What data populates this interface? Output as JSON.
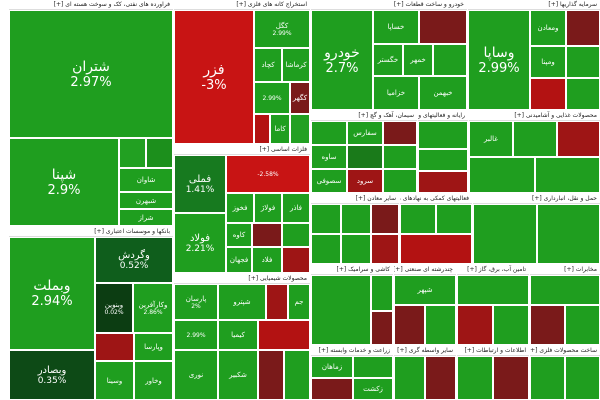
{
  "sectors": [
    {
      "key": "s_fara",
      "title": "فراورده های نفتی، کک و سوخت هسته ای [+]",
      "tiles": [
        {
          "name": "شتران",
          "pct": "2.97%",
          "color": "#1f9e1f"
        },
        {
          "name": "شپنا",
          "pct": "2.9%",
          "color": "#1f9e1f"
        },
        {
          "name": "",
          "pct": "",
          "color": "#22a022"
        },
        {
          "name": "",
          "pct": "",
          "color": "#1c8f1c"
        },
        {
          "name": "شاوان",
          "pct": "",
          "color": "#1f9e1f"
        },
        {
          "name": "شبهرن",
          "pct": "",
          "color": "#1f9e1f"
        },
        {
          "name": "",
          "pct": "",
          "color": "#1a7a1a"
        },
        {
          "name": "شراز",
          "pct": "",
          "color": "#1f9e1f"
        }
      ]
    },
    {
      "key": "s_bank",
      "title": "بانکها و موسسات اعتباری [+]",
      "tiles": [
        {
          "name": "وبملت",
          "pct": "2.94%",
          "color": "#1f9e1f"
        },
        {
          "name": "وپارسا",
          "pct": "",
          "color": "#1f9e1f"
        },
        {
          "name": "وگردش",
          "pct": "0.52%",
          "color": "#0f5e1c"
        },
        {
          "name": "وبنوین",
          "pct": "0.02%",
          "color": "#0c3d12"
        },
        {
          "name": "وکارآفرین",
          "pct": "2.86%",
          "color": "#1f9e1f"
        },
        {
          "name": "وبصادر",
          "pct": "0.35%",
          "color": "#0d4a16"
        },
        {
          "name": "",
          "pct": "",
          "color": "#9e1515"
        },
        {
          "name": "وخاور",
          "pct": "",
          "color": "#1f9e1f"
        },
        {
          "name": "وسینا",
          "pct": "",
          "color": "#1f9e1f"
        }
      ]
    },
    {
      "key": "s_kani",
      "title": "استخراج کانه های فلزی [+]",
      "tiles": [
        {
          "name": "فزر",
          "pct": "-3%",
          "color": "#c81414"
        },
        {
          "name": "کگل",
          "pct": "2.99%",
          "color": "#1f9e1f"
        },
        {
          "name": "کچاد",
          "pct": "2.99%",
          "color": "#1f9e1f"
        },
        {
          "name": "کرماشا",
          "pct": "",
          "color": "#1f9e1f"
        },
        {
          "name": "",
          "pct": "",
          "color": "#1f9e1f"
        },
        {
          "name": "کنور",
          "pct": "",
          "color": "#b31212"
        },
        {
          "name": "کگهر",
          "pct": "",
          "color": "#7a1a1a"
        },
        {
          "name": "",
          "pct": "",
          "color": "#22a022"
        },
        {
          "name": "کاما",
          "pct": "",
          "color": "#1f9e1f"
        },
        {
          "name": "",
          "pct": "",
          "color": "#1f9e1f"
        }
      ]
    },
    {
      "key": "s_felez",
      "title": "فلزات اساسی [+]",
      "tiles": [
        {
          "name": "فملی",
          "pct": "1.41%",
          "color": "#177a1f"
        },
        {
          "name": "فولاد",
          "pct": "2.21%",
          "color": "#1f9e1f"
        },
        {
          "name": "",
          "pct": "-2.58%",
          "color": "#c81414"
        },
        {
          "name": "فخوز",
          "pct": "",
          "color": "#1f9e1f"
        },
        {
          "name": "فولاژ",
          "pct": "",
          "color": "#1f9e1f"
        },
        {
          "name": "فاذر",
          "pct": "",
          "color": "#1f9e1f"
        },
        {
          "name": "کاوه",
          "pct": "",
          "color": "#1f9e1f"
        },
        {
          "name": "فجهان",
          "pct": "",
          "color": "#1f9e1f"
        },
        {
          "name": "فلاد",
          "pct": "",
          "color": "#1f9e1f"
        },
        {
          "name": "",
          "pct": "",
          "color": "#7a1a1a"
        },
        {
          "name": "",
          "pct": "",
          "color": "#1f9e1f"
        },
        {
          "name": "",
          "pct": "",
          "color": "#9e1515"
        }
      ]
    },
    {
      "key": "s_shimi",
      "title": "محصولات شیمیایی [+]",
      "tiles": [
        {
          "name": "پارسان",
          "pct": "2%",
          "color": "#1f9e1f"
        },
        {
          "name": "",
          "pct": "",
          "color": "#1f9e1f"
        },
        {
          "name": "",
          "pct": "",
          "color": "#9e1515"
        },
        {
          "name": "شپترو",
          "pct": "",
          "color": "#1f9e1f"
        },
        {
          "name": "",
          "pct": "2.99%",
          "color": "#1f9e1f"
        },
        {
          "name": "کیمیا",
          "pct": "",
          "color": "#1f9e1f"
        },
        {
          "name": "",
          "pct": "",
          "color": "#b31212"
        },
        {
          "name": "نوری",
          "pct": "",
          "color": "#1f9e1f"
        },
        {
          "name": "شکبیر",
          "pct": "",
          "color": "#1f9e1f"
        },
        {
          "name": "",
          "pct": "",
          "color": "#7a1a1a"
        },
        {
          "name": "",
          "pct": "",
          "color": "#1f9e1f"
        },
        {
          "name": "جم",
          "pct": "",
          "color": "#1f9e1f"
        }
      ]
    },
    {
      "key": "s_khodro",
      "title": "خودرو و ساخت قطعات [+]",
      "tiles": [
        {
          "name": "خودرو",
          "pct": "2.7%",
          "color": "#1f9e1f"
        },
        {
          "name": "خساپا",
          "pct": "",
          "color": "#1f9e1f"
        },
        {
          "name": "",
          "pct": "",
          "color": "#7a1a1a"
        },
        {
          "name": "خگستر",
          "pct": "",
          "color": "#1f9e1f"
        },
        {
          "name": "خمهر",
          "pct": "",
          "color": "#1f9e1f"
        },
        {
          "name": "",
          "pct": "",
          "color": "#1f9e1f"
        },
        {
          "name": "خزامیا",
          "pct": "",
          "color": "#1f9e1f"
        },
        {
          "name": "خبهمن",
          "pct": "",
          "color": "#1f9e1f"
        }
      ]
    },
    {
      "key": "s_sarmaye",
      "title": "سرمایه گذاریها [+]",
      "tiles": [
        {
          "name": "وساپا",
          "pct": "2.99%",
          "color": "#1f9e1f"
        },
        {
          "name": "ومعادن",
          "pct": "",
          "color": "#1f9e1f"
        },
        {
          "name": "",
          "pct": "",
          "color": "#7a1a1a"
        },
        {
          "name": "ومپنا",
          "pct": "",
          "color": "#1f9e1f"
        },
        {
          "name": "",
          "pct": "",
          "color": "#1f9e1f"
        },
        {
          "name": "",
          "pct": "",
          "color": "#b31212"
        },
        {
          "name": "",
          "pct": "",
          "color": "#1f9e1f"
        }
      ]
    },
    {
      "key": "s_siman",
      "title": "سیمان، آهک و گچ [+]",
      "tiles": [
        {
          "name": "سفارس",
          "pct": "",
          "color": "#1f9e1f"
        },
        {
          "name": "",
          "pct": "",
          "color": "#7a1a1a"
        },
        {
          "name": "ساوه",
          "pct": "",
          "color": "#1f9e1f"
        },
        {
          "name": "سصوفی",
          "pct": "",
          "color": "#1f9e1f"
        },
        {
          "name": "سرود",
          "pct": "",
          "color": "#9e1515"
        },
        {
          "name": "",
          "pct": "",
          "color": "#1f9e1f"
        },
        {
          "name": "",
          "pct": "",
          "color": "#1f9e1f"
        },
        {
          "name": "",
          "pct": "",
          "color": "#1a7a1a"
        }
      ]
    },
    {
      "key": "s_raiane",
      "title": "رایانه و فعالیتهای وابسته [+]",
      "tiles": [
        {
          "name": "",
          "pct": "",
          "color": "#1f9e1f"
        },
        {
          "name": "",
          "pct": "",
          "color": "#1f9e1f"
        },
        {
          "name": "",
          "pct": "",
          "color": "#9e1515"
        }
      ]
    },
    {
      "key": "s_hotel",
      "title": "هتل و رستوران [+]",
      "tiles": [
        {
          "name": "",
          "pct": "",
          "color": "#1f9e1f"
        },
        {
          "name": "",
          "pct": "",
          "color": "#1f9e1f"
        }
      ]
    },
    {
      "key": "s_chand",
      "title": "چندرشته ای صنعتی [+]",
      "tiles": [
        {
          "name": "شپهر",
          "pct": "",
          "color": "#1f9e1f"
        },
        {
          "name": "",
          "pct": "",
          "color": "#7a1a1a"
        },
        {
          "name": "",
          "pct": "",
          "color": "#1f9e1f"
        }
      ]
    },
    {
      "key": "s_tele",
      "title": "مخابرات [+]",
      "tiles": [
        {
          "name": "",
          "pct": "",
          "color": "#1f9e1f"
        },
        {
          "name": "",
          "pct": "",
          "color": "#7a1a1a"
        },
        {
          "name": "",
          "pct": "",
          "color": "#1f9e1f"
        }
      ]
    },
    {
      "key": "s_taamin",
      "title": "تامین آب، برق، گاز [+]",
      "tiles": [
        {
          "name": "",
          "pct": "",
          "color": "#1f9e1f"
        },
        {
          "name": "",
          "pct": "",
          "color": "#9e1515"
        },
        {
          "name": "",
          "pct": "",
          "color": "#1f9e1f"
        }
      ]
    },
    {
      "key": "s_zeraat",
      "title": "زراعت و خدمات وابسته [+]",
      "tiles": [
        {
          "name": "زماهان",
          "pct": "",
          "color": "#1f9e1f"
        },
        {
          "name": "",
          "pct": "",
          "color": "#1f9e1f"
        },
        {
          "name": "",
          "pct": "",
          "color": "#7a1a1a"
        },
        {
          "name": "زکشت",
          "pct": "",
          "color": "#1f9e1f"
        }
      ]
    },
    {
      "key": "s_daroo",
      "title": "مواد و محصولات دارویی [+]",
      "tiles": [
        {
          "name": "",
          "pct": "",
          "color": "#1f9e1f"
        },
        {
          "name": "",
          "pct": "",
          "color": "#1f9e1f"
        },
        {
          "name": "تیپکو",
          "pct": "",
          "color": "#1f9e1f"
        },
        {
          "name": "",
          "pct": "",
          "color": "#7a1a1a"
        },
        {
          "name": "",
          "pct": "",
          "color": "#1f9e1f"
        },
        {
          "name": "",
          "pct": "",
          "color": "#1f9e1f"
        },
        {
          "name": "",
          "pct": "",
          "color": "#1f9e1f"
        },
        {
          "name": "",
          "pct": "",
          "color": "#9e1515"
        }
      ]
    },
    {
      "key": "s_madan",
      "title": "سایر معادن [+]",
      "tiles": [
        {
          "name": "وبعدیر",
          "pct": "2.96%",
          "color": "#1f9e1f"
        },
        {
          "name": "",
          "pct": "",
          "color": "#1f9e1f"
        },
        {
          "name": "",
          "pct": "",
          "color": "#7a1a1a"
        },
        {
          "name": "",
          "pct": "",
          "color": "#1f9e1f"
        }
      ]
    },
    {
      "key": "s_kashi",
      "title": "کاشی و سرامیک [+]",
      "tiles": [
        {
          "name": "",
          "pct": "",
          "color": "#1f9e1f"
        },
        {
          "name": "",
          "pct": "",
          "color": "#1f9e1f"
        }
      ]
    },
    {
      "key": "s_poul",
      "title": "فعالیتهای کمکی به نهادهای مالی [+]",
      "tiles": [
        {
          "name": "",
          "pct": "",
          "color": "#1f9e1f"
        },
        {
          "name": "",
          "pct": "",
          "color": "#1f9e1f"
        },
        {
          "name": "",
          "pct": "",
          "color": "#b31212"
        }
      ]
    },
    {
      "key": "s_manafe",
      "title": "اطلاعات و ارتباطات [+]",
      "tiles": [
        {
          "name": "",
          "pct": "",
          "color": "#1f9e1f"
        },
        {
          "name": "",
          "pct": "",
          "color": "#7a1a1a"
        }
      ]
    },
    {
      "key": "s_hamlonagl",
      "title": "حمل و نقل، انبارداری [+]",
      "tiles": [
        {
          "name": "",
          "pct": "",
          "color": "#1f9e1f"
        },
        {
          "name": "",
          "pct": "",
          "color": "#1f9e1f"
        }
      ]
    },
    {
      "key": "s_gaza",
      "title": "محصولات غذایی و آشامیدنی [+]",
      "tiles": [
        {
          "name": "غالبر",
          "pct": "",
          "color": "#1f9e1f"
        },
        {
          "name": "",
          "pct": "",
          "color": "#1f9e1f"
        },
        {
          "name": "",
          "pct": "",
          "color": "#9e1515"
        },
        {
          "name": "",
          "pct": "",
          "color": "#1f9e1f"
        },
        {
          "name": "",
          "pct": "",
          "color": "#1f9e1f"
        }
      ]
    },
    {
      "key": "s_sakht",
      "title": "ساخت محصولات فلزی [+]",
      "tiles": [
        {
          "name": "",
          "pct": "",
          "color": "#1f9e1f"
        },
        {
          "name": "",
          "pct": "",
          "color": "#1f9e1f"
        }
      ]
    },
    {
      "key": "s_sanaye",
      "title": "سایر واسطه گری [+]",
      "tiles": [
        {
          "name": "",
          "pct": "",
          "color": "#1f9e1f"
        },
        {
          "name": "",
          "pct": "",
          "color": "#7a1a1a"
        }
      ]
    }
  ]
}
